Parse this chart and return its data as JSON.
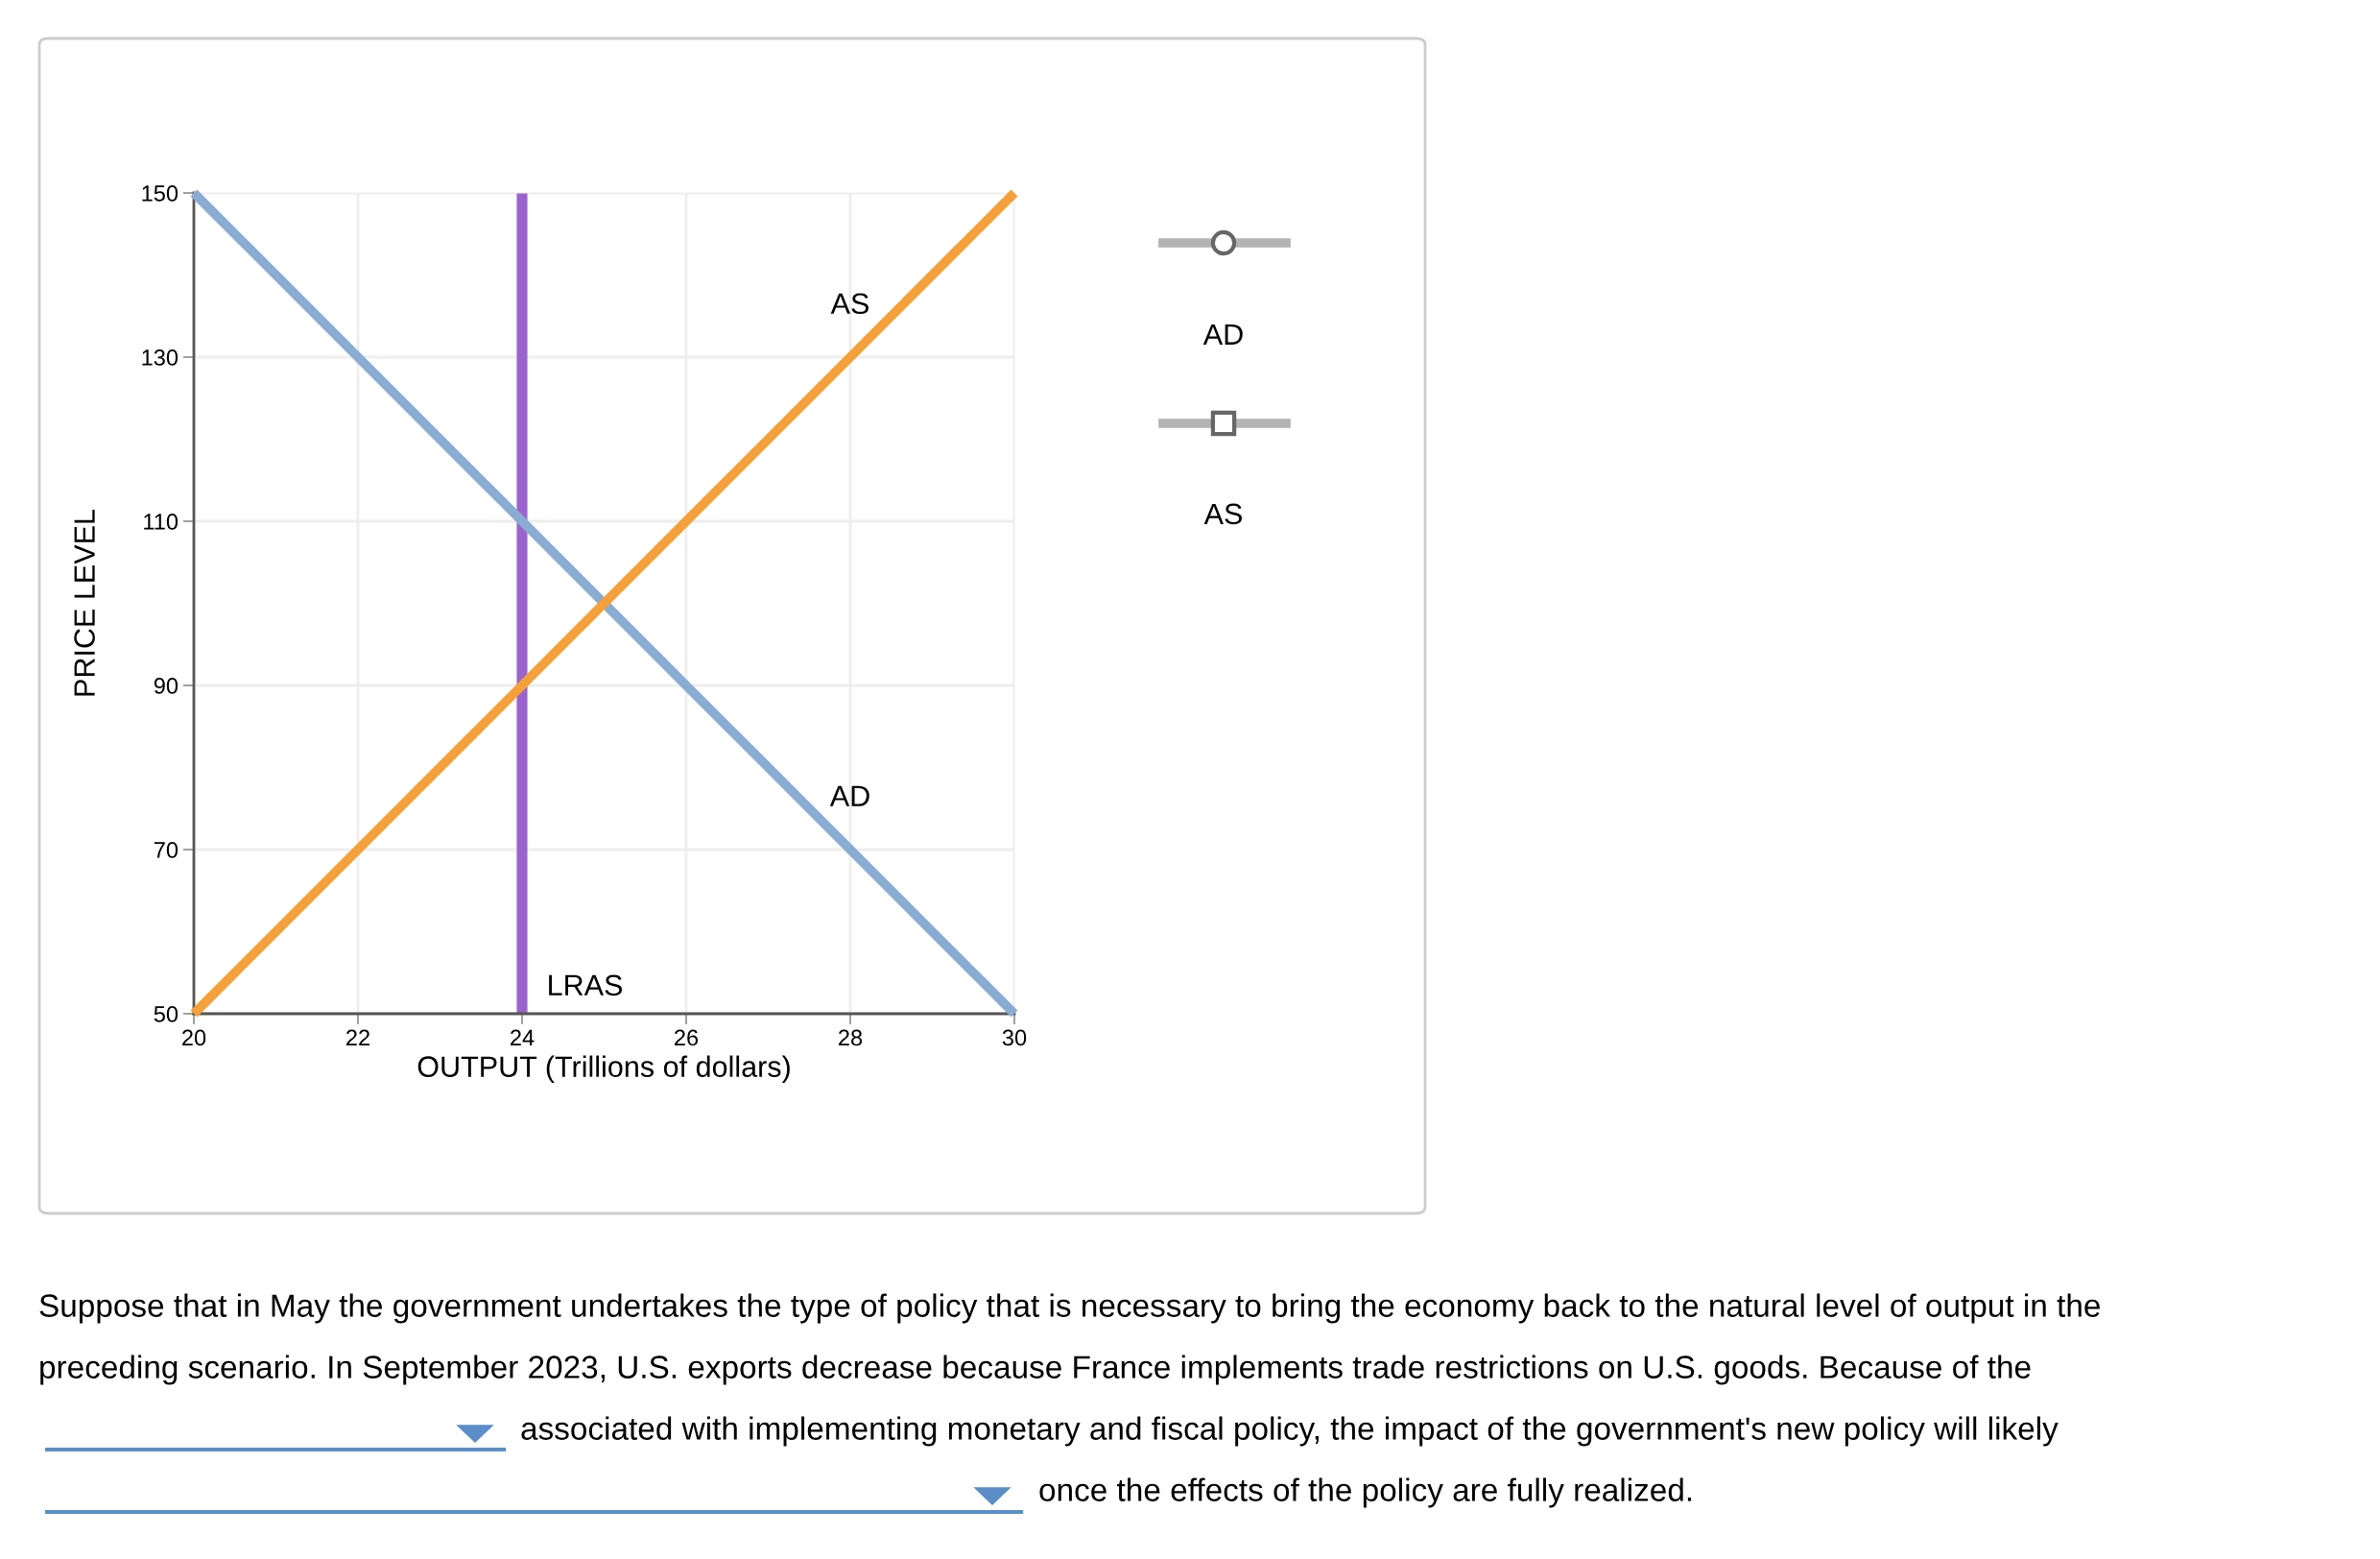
{
  "chart_data": {
    "type": "line",
    "xlabel": "OUTPUT (Trillions of dollars)",
    "ylabel": "PRICE LEVEL",
    "xlim": [
      20,
      30
    ],
    "xticks": [
      20,
      22,
      24,
      26,
      28,
      30
    ],
    "ylim": [
      50,
      150
    ],
    "yticks": [
      50,
      70,
      90,
      110,
      130,
      150
    ],
    "grid": true,
    "x": [
      20,
      30
    ],
    "series": [
      {
        "values": [
          150,
          50
        ],
        "color": "#8bacd2"
      },
      {
        "values": [
          50,
          150
        ],
        "color": "#f4a03b"
      }
    ],
    "ref_lines": [
      {
        "axis": "x",
        "value": 24,
        "label": "LRAS",
        "color": "#9b63cc"
      }
    ],
    "annotations": [
      {
        "text": "AS",
        "x": 28,
        "y": 130
      },
      {
        "text": "AD",
        "x": 28,
        "y": 70
      },
      "AD",
      "AS",
      "Suppose that in May the government undertakes the type of policy that is necessary to bring the economy back to the natural level of output in the",
      "preceding scenario. In September 2023, U.S. exports decrease because France implements trade restrictions on U.S. goods. Because of the",
      "associated with implementing monetary and fiscal policy, the impact of the government's new policy will likely",
      "once the effects of the policy are fully realized."
    ]
  }
}
